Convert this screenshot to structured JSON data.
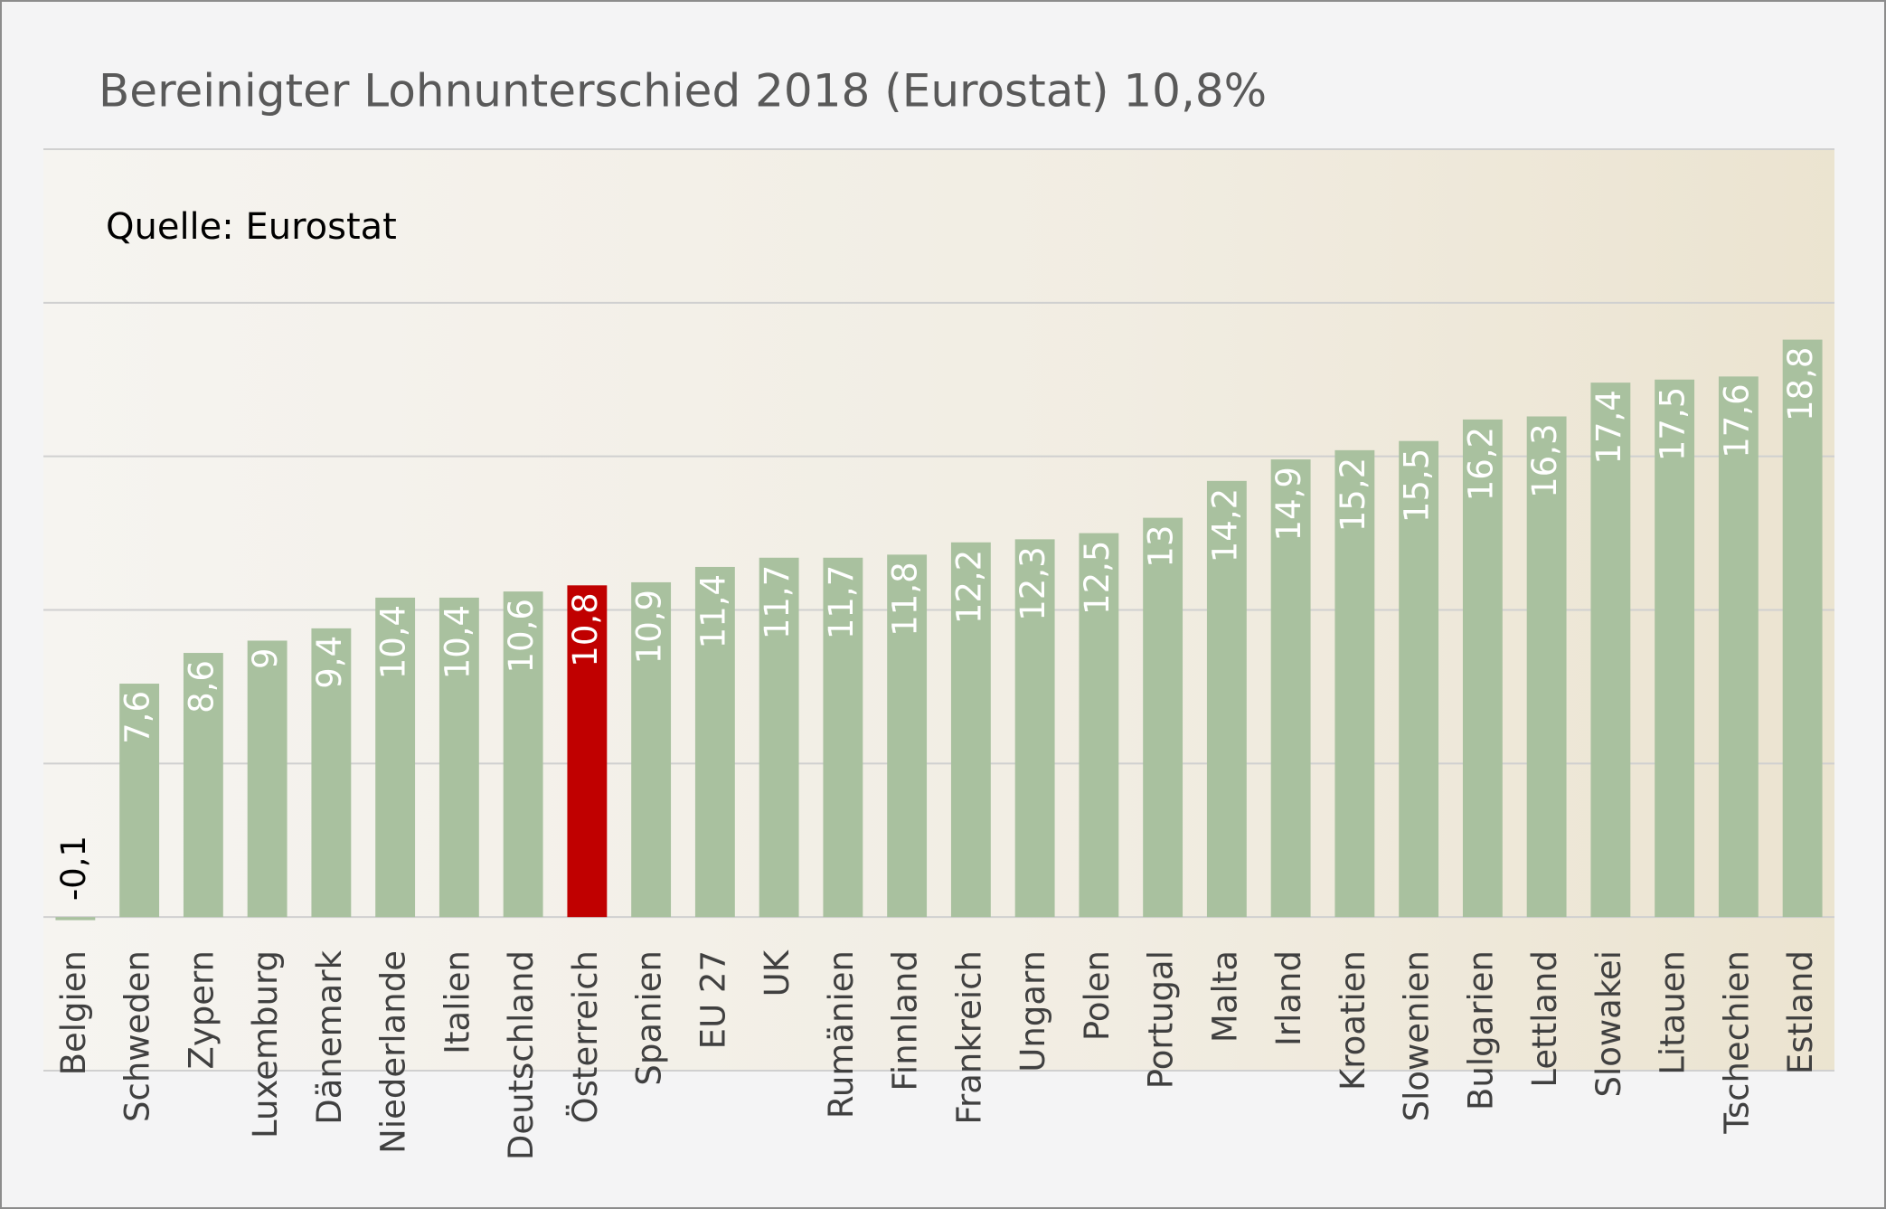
{
  "chart_data": {
    "type": "bar",
    "title": "Bereinigter Lohnunterschied 2018 (Eurostat) 10,8%",
    "annotation": "Quelle: Eurostat",
    "categories": [
      "Belgien",
      "Schweden",
      "Zypern",
      "Luxemburg",
      "Dänemark",
      "Niederlande",
      "Italien",
      "Deutschland",
      "Österreich",
      "Spanien",
      "EU 27",
      "UK",
      "Rumänien",
      "Finnland",
      "Frankreich",
      "Ungarn",
      "Polen",
      "Portugal",
      "Malta",
      "Irland",
      "Kroatien",
      "Slowenien",
      "Bulgarien",
      "Lettland",
      "Slowakei",
      "Litauen",
      "Tschechien",
      "Estland"
    ],
    "values": [
      -0.1,
      7.6,
      8.6,
      9,
      9.4,
      10.4,
      10.4,
      10.6,
      10.8,
      10.9,
      11.4,
      11.7,
      11.7,
      11.8,
      12.2,
      12.3,
      12.5,
      13,
      14.2,
      14.9,
      15.2,
      15.5,
      16.2,
      16.3,
      17.4,
      17.5,
      17.6,
      18.8
    ],
    "value_labels": [
      "-0,1",
      "7,6",
      "8,6",
      "9",
      "9,4",
      "10,4",
      "10,4",
      "10,6",
      "10,8",
      "10,9",
      "11,4",
      "11,7",
      "11,7",
      "11,8",
      "12,2",
      "12,3",
      "12,5",
      "13",
      "14,2",
      "14,9",
      "15,2",
      "15,5",
      "16,2",
      "16,3",
      "17,4",
      "17,5",
      "17,6",
      "18,8"
    ],
    "colors": [
      "#a9c19f",
      "#a9c19f",
      "#a9c19f",
      "#a9c19f",
      "#a9c19f",
      "#a9c19f",
      "#a9c19f",
      "#a9c19f",
      "#c00000",
      "#a9c19f",
      "#a9c19f",
      "#a9c19f",
      "#a9c19f",
      "#a9c19f",
      "#a9c19f",
      "#a9c19f",
      "#a9c19f",
      "#a9c19f",
      "#a9c19f",
      "#a9c19f",
      "#a9c19f",
      "#a9c19f",
      "#a9c19f",
      "#a9c19f",
      "#a9c19f",
      "#a9c19f",
      "#a9c19f",
      "#a9c19f"
    ],
    "ylim": [
      -5,
      25
    ],
    "yticks": [
      -5,
      0,
      5,
      10,
      15,
      20,
      25
    ],
    "grid": true
  }
}
